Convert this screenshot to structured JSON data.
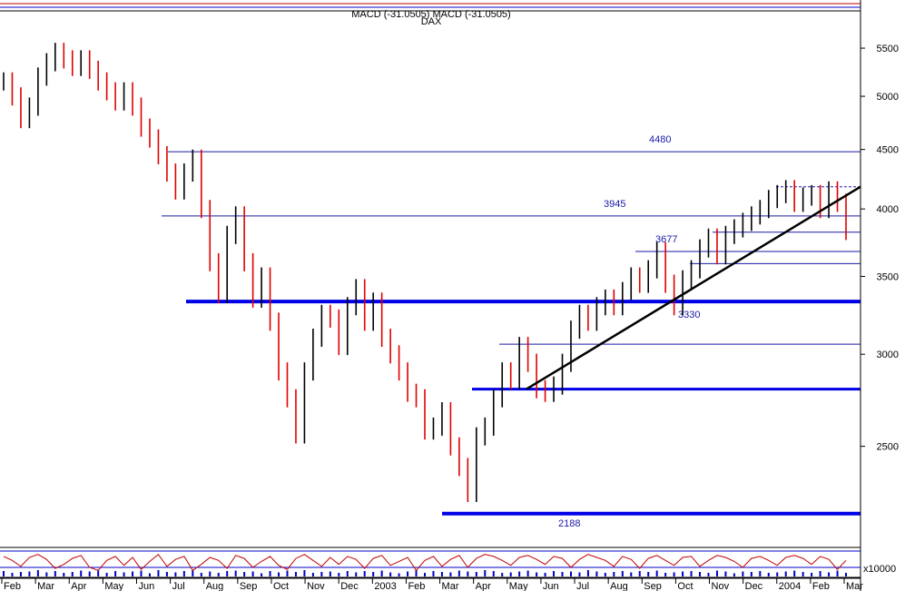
{
  "header": {
    "line1": "MACD (-31.0505) MACD (-31.0505)",
    "line2": "DAX"
  },
  "colors": {
    "up": "#000000",
    "down": "#e00000",
    "support": "#0000e6",
    "level": "#1a1aa8",
    "trend": "#000000",
    "osc_line": "#c00000",
    "volume": "#0000cc",
    "grid": "#000000"
  },
  "chart_data": {
    "type": "candlestick",
    "yscale": "log",
    "ylim": [
      2050,
      5900
    ],
    "y_ticks": [
      "5500",
      "5000",
      "4500",
      "4000",
      "3500",
      "3000",
      "2500"
    ],
    "y_tick_values": [
      5500,
      5000,
      4500,
      4000,
      3500,
      3000,
      2500
    ],
    "x_months": [
      "Feb",
      "Mar",
      "Apr",
      "May",
      "Jun",
      "Jul",
      "Aug",
      "Sep",
      "Oct",
      "Nov",
      "Dec",
      "2003",
      "Feb",
      "Mar",
      "Apr",
      "May",
      "Jun",
      "Jul",
      "Aug",
      "Sep",
      "Oct",
      "Nov",
      "Dec",
      "2004",
      "Feb",
      "Mar"
    ],
    "series_close": [
      5150,
      5000,
      4780,
      4900,
      5200,
      5350,
      5460,
      5380,
      5300,
      5380,
      5270,
      5150,
      5050,
      4950,
      5050,
      4900,
      4700,
      4600,
      4450,
      4300,
      4150,
      4300,
      4420,
      4000,
      3600,
      3380,
      3800,
      3950,
      3600,
      3350,
      3500,
      3200,
      2900,
      2750,
      2560,
      2900,
      3100,
      3250,
      3220,
      3050,
      3300,
      3420,
      3200,
      3330,
      3100,
      3000,
      2900,
      2780,
      2750,
      2580,
      2600,
      2680,
      2500,
      2400,
      2280,
      2550,
      2600,
      2750,
      2900,
      2850,
      3050,
      2950,
      2800,
      2780,
      2820,
      2950,
      3150,
      3250,
      3200,
      3300,
      3350,
      3300,
      3400,
      3500,
      3450,
      3550,
      3680,
      3450,
      3300,
      3480,
      3550,
      3700,
      3780,
      3650,
      3800,
      3850,
      3900,
      3950,
      4000,
      4080,
      4120,
      4160,
      4050,
      4100,
      4120,
      4000,
      4150,
      4050,
      3830
    ],
    "levels": [
      {
        "label": "4480",
        "value": 4480
      },
      {
        "label": "3945",
        "value": 3945
      },
      {
        "label": "3677",
        "value": 3677
      },
      {
        "label": "3330",
        "value": 3330
      },
      {
        "label": "2188",
        "value": 2188
      }
    ],
    "extra_lines": [
      3820,
      3590,
      3060,
      4180
    ],
    "support_lines": [
      3330,
      2800,
      2188
    ],
    "trendline": {
      "from": 2800,
      "to": 4180
    },
    "oscillator": [
      0.6,
      0.2,
      -0.4,
      0.5,
      0.8,
      0.3,
      -0.6,
      -0.2,
      0.4,
      0.7,
      -0.5,
      -0.8,
      0.2,
      0.6,
      -0.3,
      0.5,
      -0.7,
      0.1,
      0.8,
      -0.4,
      0.3,
      0.6,
      -0.8,
      -0.2,
      0.5,
      0.2,
      -0.6,
      0.7,
      0.4,
      -0.5,
      0.1,
      0.6,
      -0.3,
      -0.7,
      0.4,
      0.8,
      0.2,
      -0.4,
      0.5,
      -0.2,
      0.6,
      0.3,
      -0.6,
      0.4,
      0.7,
      -0.3,
      0.1,
      0.5,
      -0.8,
      0.2,
      0.6,
      -0.4,
      0.3,
      0.7,
      -0.5,
      0.4,
      0.8,
      0.6,
      0.2,
      -0.3,
      0.5,
      0.7,
      0.3,
      -0.2,
      0.6,
      0.4,
      -0.5,
      0.3,
      0.8,
      0.5,
      0.2,
      -0.4,
      0.6,
      0.3,
      -0.6,
      0.4,
      0.7,
      0.2,
      -0.3,
      0.5,
      0.6,
      -0.4,
      0.2,
      0.7,
      0.5,
      0.1,
      -0.5,
      0.4,
      0.6,
      0.2,
      -0.3,
      0.5,
      0.7,
      0.4,
      -0.2,
      0.6,
      0.3,
      -0.7,
      0.2
    ],
    "osc_scale_label": "x10000"
  }
}
